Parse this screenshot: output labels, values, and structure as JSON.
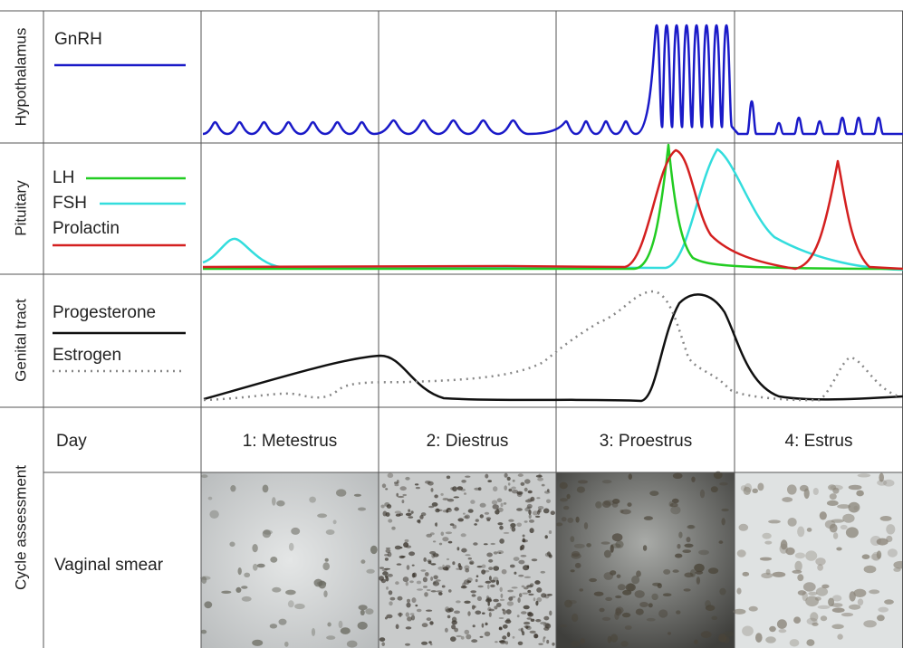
{
  "row_labels": [
    "Hypothalamus",
    "Pituitary",
    "Genital tract",
    "Cycle assessment"
  ],
  "legend": [
    "GnRH",
    "LH",
    "FSH",
    "Prolactin",
    "Progesterone",
    "Estrogen"
  ],
  "day_header": "Day",
  "days": [
    "1: Metestrus",
    "2: Diestrus",
    "3: Proestrus",
    "4: Estrus"
  ],
  "smear_label": "Vaginal smear"
}
